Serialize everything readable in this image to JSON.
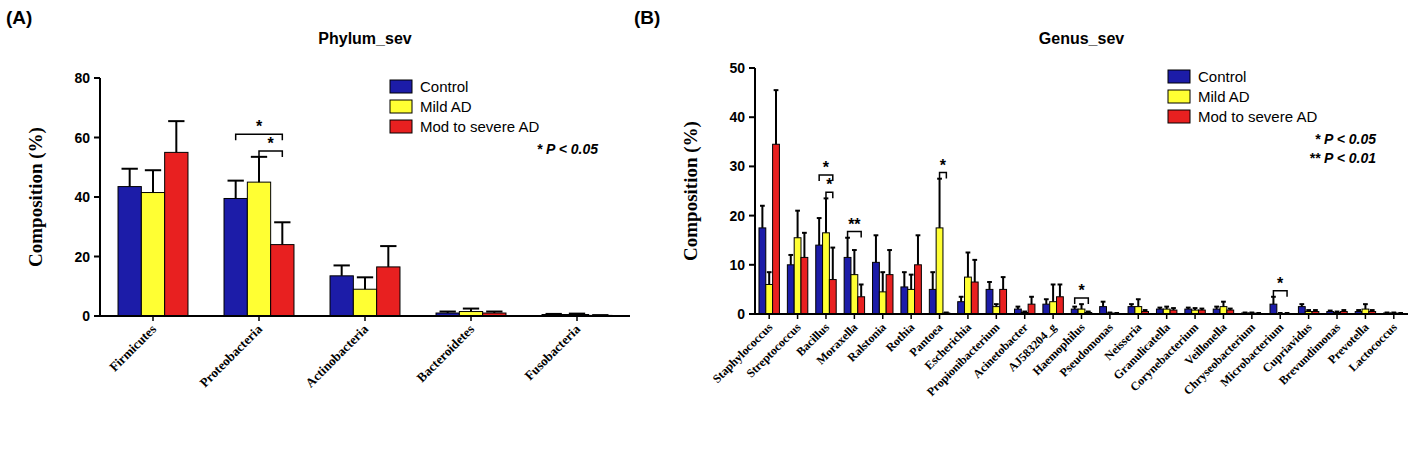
{
  "chart_data": [
    {
      "type": "bar",
      "panel_label": "(A)",
      "title": "Phylum_sev",
      "y_label": "Composition (%)",
      "categories": [
        "Firmicutes",
        "Proteobacteria",
        "Actinobacteria",
        "Bacteroidetes",
        "Fusobacteria"
      ],
      "series": [
        {
          "name": "Control",
          "color": "#1c1ca8",
          "values": [
            43.5,
            39.5,
            13.5,
            1,
            0.5
          ],
          "errors": [
            6,
            6,
            3.5,
            0.5,
            0.2
          ]
        },
        {
          "name": "Mild AD",
          "color": "#ffff33",
          "values": [
            41.5,
            45,
            9,
            1.5,
            0.5
          ],
          "errors": [
            7.5,
            8.5,
            4,
            1,
            0.3
          ]
        },
        {
          "name": "Mod to severe AD",
          "color": "#e82020",
          "values": [
            55,
            24,
            16.5,
            1,
            0.2
          ],
          "errors": [
            10.5,
            7.5,
            7,
            0.5,
            0.1
          ]
        }
      ],
      "significance": [
        {
          "category": "Proteobacteria",
          "from": "Mild AD",
          "to": "Mod to severe AD",
          "label": "*"
        },
        {
          "category": "Proteobacteria",
          "from": "Control",
          "to": "Mod to severe AD",
          "label": "*"
        }
      ],
      "annotations": [
        "* P < 0.05"
      ],
      "ylim": [
        0,
        80
      ],
      "yticks": [
        0,
        20,
        40,
        60,
        80
      ],
      "grid": false,
      "legend": "top right"
    },
    {
      "type": "bar",
      "panel_label": "(B)",
      "title": "Genus_sev",
      "y_label": "Composition (%)",
      "categories": [
        "Staphylococcus",
        "Streptococcus",
        "Bacillus",
        "Moraxella",
        "Ralstonia",
        "Rothia",
        "Pantoea",
        "Escherichia",
        "Propionibacterium",
        "Acinetobacter",
        "AJ583204_g",
        "Haemophilus",
        "Pseudomonas",
        "Neisseria",
        "Granulicatella",
        "Corynebacterium",
        "Veillonella",
        "Chryseobacterium",
        "Microbacterium",
        "Cupriavidus",
        "Brevundimonas",
        "Prevotella",
        "Lactococcus"
      ],
      "series": [
        {
          "name": "Control",
          "color": "#1c1ca8",
          "values": [
            17.5,
            10,
            14,
            11.5,
            10.5,
            5.5,
            5,
            2.5,
            5,
            1,
            2,
            1,
            1.5,
            1.5,
            1,
            1,
            1,
            0.2,
            2,
            1.5,
            0.5,
            0.5,
            0.2
          ],
          "errors": [
            4.5,
            2,
            5.5,
            4,
            5.5,
            3,
            3.5,
            1,
            1.5,
            0.5,
            1,
            0.5,
            1,
            0.5,
            0.3,
            0.3,
            0.5,
            0.1,
            1.5,
            0.5,
            0.2,
            0.3,
            0.1
          ]
        },
        {
          "name": "Mild AD",
          "color": "#ffff33",
          "values": [
            6,
            15.5,
            16.5,
            8,
            4.5,
            5,
            17.5,
            7.5,
            1.5,
            0.3,
            2.5,
            1,
            0.2,
            1.5,
            1,
            0.8,
            1.5,
            0.2,
            0.1,
            0.5,
            0.3,
            1,
            0.2
          ],
          "errors": [
            2.5,
            5.5,
            7,
            5,
            4,
            3,
            10,
            5,
            0.5,
            0.2,
            3.5,
            1,
            0.1,
            1.5,
            0.5,
            0.4,
            1,
            0.1,
            0.1,
            0.3,
            0.2,
            1,
            0.1
          ]
        },
        {
          "name": "Mod to severe AD",
          "color": "#e82020",
          "values": [
            34.5,
            11.5,
            7,
            3.5,
            8,
            10,
            0.2,
            6.5,
            5,
            2,
            3.5,
            0.3,
            0.1,
            0.5,
            0.8,
            0.8,
            0.8,
            0.1,
            0.1,
            0.5,
            0.5,
            0.5,
            0.1
          ],
          "errors": [
            11,
            5,
            6.5,
            2.5,
            5,
            6,
            0.1,
            4.5,
            2.5,
            1.5,
            2.5,
            0.2,
            0.1,
            0.3,
            0.4,
            0.3,
            0.3,
            0.1,
            0.1,
            0.3,
            0.3,
            0.3,
            0.1
          ]
        }
      ],
      "significance": [
        {
          "category": "Bacillus",
          "from": "Mild AD",
          "to": "Mod to severe AD",
          "label": "*"
        },
        {
          "category": "Bacillus",
          "from": "Control",
          "to": "Mod to severe AD",
          "label": "*"
        },
        {
          "category": "Moraxella",
          "from": "Control",
          "to": "Mod to severe AD",
          "label": "**"
        },
        {
          "category": "Pantoea",
          "from": "Mild AD",
          "to": "Mod to severe AD",
          "label": "*"
        },
        {
          "category": "Haemophilus",
          "from": "Control",
          "to": "Mod to severe AD",
          "label": "*"
        },
        {
          "category": "Microbacterium",
          "from": "Control",
          "to": "Mod to severe AD",
          "label": "*"
        }
      ],
      "annotations": [
        "* P < 0.05",
        "** P < 0.01"
      ],
      "ylim": [
        0,
        50
      ],
      "yticks": [
        0,
        10,
        20,
        30,
        40,
        50
      ],
      "grid": false,
      "legend": "top right"
    }
  ]
}
